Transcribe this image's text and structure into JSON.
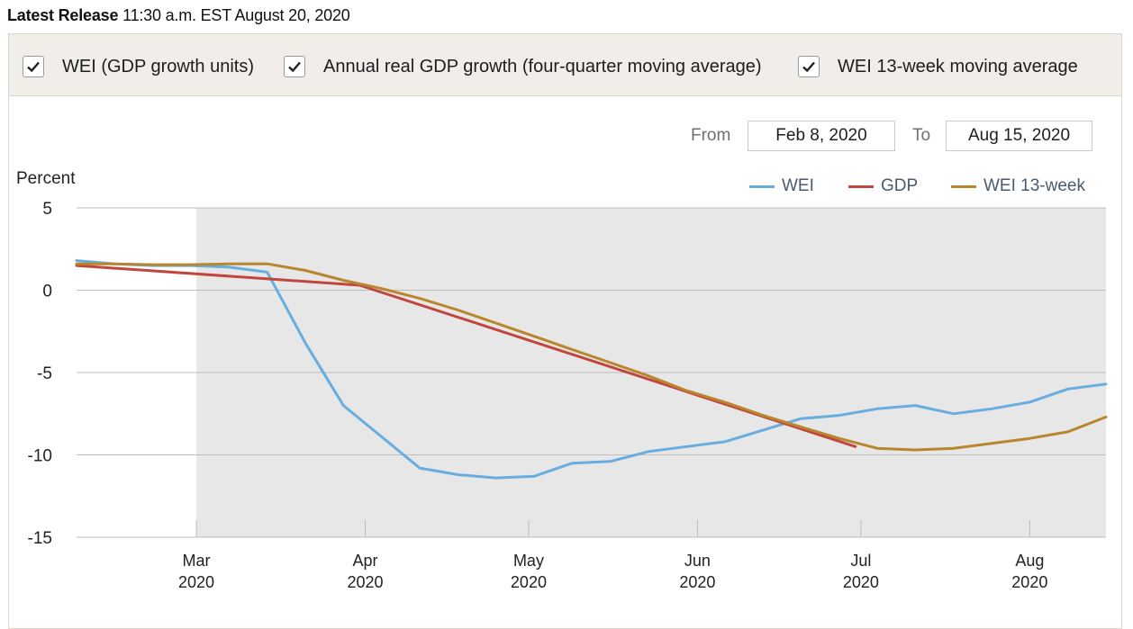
{
  "release": {
    "label": "Latest Release",
    "detail": "11:30 a.m. EST August 20, 2020"
  },
  "toggles": [
    {
      "label": "WEI (GDP growth units)",
      "checked": true
    },
    {
      "label": "Annual real GDP growth (four-quarter moving average)",
      "checked": true
    },
    {
      "label": "WEI 13-week moving average",
      "checked": true
    }
  ],
  "range": {
    "from_label": "From",
    "from_value": "Feb 8, 2020",
    "to_label": "To",
    "to_value": "Aug 15, 2020"
  },
  "chart_data": {
    "type": "line",
    "ylabel": "Percent",
    "ylim": [
      -15,
      5
    ],
    "yticks": [
      5,
      0,
      -5,
      -10,
      -15
    ],
    "xlim": [
      "2020-02-08",
      "2020-08-15"
    ],
    "highlight_start": "2020-03-01",
    "xticks": [
      {
        "date": "2020-03-01",
        "month": "Mar",
        "year": "2020"
      },
      {
        "date": "2020-04-01",
        "month": "Apr",
        "year": "2020"
      },
      {
        "date": "2020-05-01",
        "month": "May",
        "year": "2020"
      },
      {
        "date": "2020-06-01",
        "month": "Jun",
        "year": "2020"
      },
      {
        "date": "2020-07-01",
        "month": "Jul",
        "year": "2020"
      },
      {
        "date": "2020-08-01",
        "month": "Aug",
        "year": "2020"
      }
    ],
    "legend_position": "top-right",
    "series": [
      {
        "name": "WEI",
        "color": "#67addf",
        "x": [
          "2020-02-08",
          "2020-02-15",
          "2020-02-22",
          "2020-02-29",
          "2020-03-07",
          "2020-03-14",
          "2020-03-21",
          "2020-03-28",
          "2020-04-04",
          "2020-04-11",
          "2020-04-18",
          "2020-04-25",
          "2020-05-02",
          "2020-05-09",
          "2020-05-16",
          "2020-05-23",
          "2020-05-30",
          "2020-06-06",
          "2020-06-13",
          "2020-06-20",
          "2020-06-27",
          "2020-07-04",
          "2020-07-11",
          "2020-07-18",
          "2020-07-25",
          "2020-08-01",
          "2020-08-08",
          "2020-08-15"
        ],
        "y": [
          1.8,
          1.6,
          1.5,
          1.5,
          1.4,
          1.1,
          -3.2,
          -7.0,
          -8.9,
          -10.8,
          -11.2,
          -11.4,
          -11.3,
          -10.5,
          -10.4,
          -9.8,
          -9.5,
          -9.2,
          -8.5,
          -7.8,
          -7.6,
          -7.2,
          -7.0,
          -7.5,
          -7.2,
          -6.8,
          -6.0,
          -5.7
        ]
      },
      {
        "name": "GDP",
        "color": "#c0463e",
        "x": [
          "2020-02-08",
          "2020-03-31",
          "2020-06-30"
        ],
        "y": [
          1.5,
          0.3,
          -9.5
        ]
      },
      {
        "name": "WEI 13-week",
        "color": "#b8862d",
        "x": [
          "2020-02-08",
          "2020-02-15",
          "2020-02-22",
          "2020-02-29",
          "2020-03-07",
          "2020-03-14",
          "2020-03-21",
          "2020-03-28",
          "2020-04-04",
          "2020-04-11",
          "2020-04-18",
          "2020-04-25",
          "2020-05-02",
          "2020-05-09",
          "2020-05-16",
          "2020-05-23",
          "2020-05-30",
          "2020-06-06",
          "2020-06-13",
          "2020-06-20",
          "2020-06-27",
          "2020-07-04",
          "2020-07-11",
          "2020-07-18",
          "2020-07-25",
          "2020-08-01",
          "2020-08-08",
          "2020-08-15"
        ],
        "y": [
          1.6,
          1.6,
          1.55,
          1.55,
          1.6,
          1.6,
          1.2,
          0.6,
          0.1,
          -0.5,
          -1.2,
          -2.0,
          -2.8,
          -3.6,
          -4.4,
          -5.2,
          -6.1,
          -6.8,
          -7.6,
          -8.3,
          -9.0,
          -9.6,
          -9.7,
          -9.6,
          -9.3,
          -9.0,
          -8.6,
          -7.7
        ]
      }
    ]
  }
}
